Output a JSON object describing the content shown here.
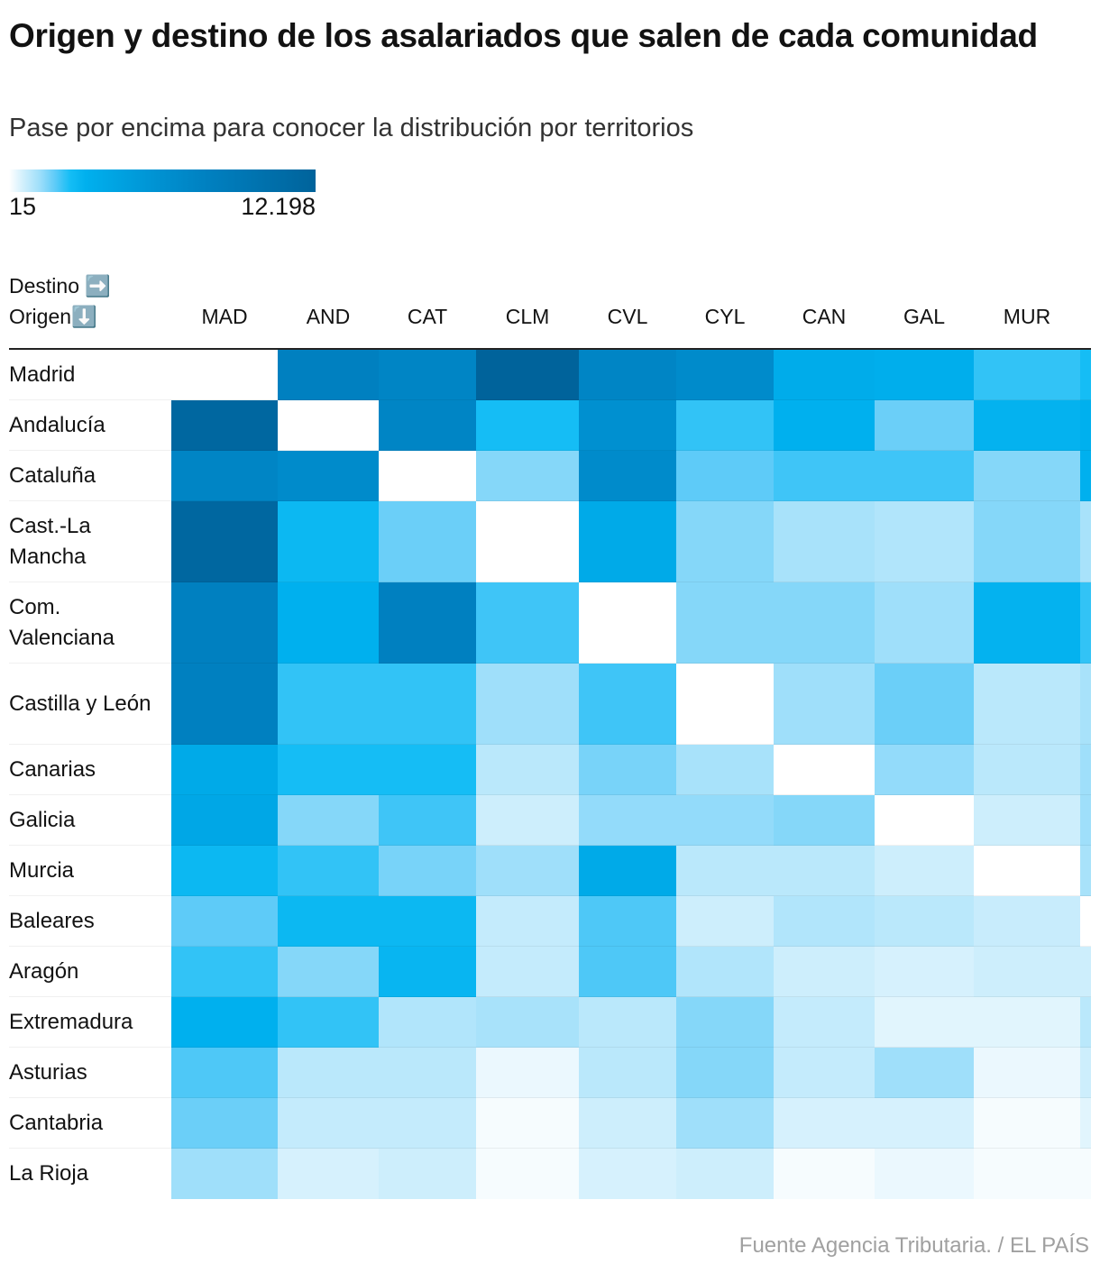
{
  "title": "Origen y destino de los asalariados que salen de cada comunidad",
  "subtitle": "Pase por encima para conocer la distribución por territorios",
  "legend": {
    "min_label": "15",
    "max_label": "12.198"
  },
  "axis_headers": {
    "destino": "Destino ➡️",
    "origen": "Origen⬇️"
  },
  "source": "Fuente Agencia Tributaria. / EL PAÍS",
  "chart_data": {
    "type": "heatmap",
    "title": "Origen y destino de los asalariados que salen de cada comunidad",
    "subtitle": "Pase por encima para conocer la distribución por territorios",
    "xlabel": "Destino",
    "ylabel": "Origen",
    "color_range": [
      15,
      12198
    ],
    "colors": {
      "low": "#ffffff",
      "mid": "#00b8f0",
      "high": "#00639b",
      "diagonal": "#ffffff"
    },
    "columns": [
      "MAD",
      "AND",
      "CAT",
      "CLM",
      "CVL",
      "CYL",
      "CAN",
      "GAL",
      "MUR",
      ""
    ],
    "rows": [
      "Madrid",
      "Andalucía",
      "Cataluña",
      "Cast.-La Mancha",
      "Com. Valenciana",
      "Castilla y León",
      "Canarias",
      "Galicia",
      "Murcia",
      "Baleares",
      "Aragón",
      "Extremadura",
      "Asturias",
      "Cantabria",
      "La Rioja"
    ],
    "values": [
      [
        null,
        5160,
        4400,
        12198,
        4400,
        3700,
        970,
        900,
        410,
        500
      ],
      [
        11010,
        null,
        4400,
        500,
        3060,
        410,
        780,
        255,
        720,
        780
      ],
      [
        4400,
        3700,
        null,
        190,
        3700,
        290,
        370,
        370,
        190,
        780
      ],
      [
        11010,
        605,
        255,
        null,
        1110,
        190,
        115,
        93,
        190,
        115
      ],
      [
        5160,
        780,
        5160,
        370,
        null,
        190,
        190,
        137,
        720,
        410
      ],
      [
        5160,
        410,
        410,
        137,
        370,
        null,
        137,
        255,
        75,
        115
      ],
      [
        1110,
        500,
        500,
        75,
        220,
        115,
        null,
        160,
        75,
        137
      ],
      [
        1260,
        190,
        370,
        45,
        160,
        160,
        190,
        null,
        45,
        137
      ],
      [
        605,
        410,
        220,
        137,
        1110,
        75,
        75,
        45,
        null,
        115
      ],
      [
        290,
        605,
        605,
        59,
        330,
        45,
        93,
        75,
        52,
        null
      ],
      [
        410,
        190,
        660,
        59,
        330,
        93,
        45,
        35,
        45,
        45
      ],
      [
        780,
        410,
        93,
        115,
        75,
        190,
        59,
        26,
        26,
        75
      ],
      [
        330,
        75,
        75,
        20,
        75,
        190,
        59,
        137,
        20,
        45
      ],
      [
        255,
        59,
        59,
        16,
        45,
        137,
        35,
        35,
        16,
        26
      ],
      [
        137,
        35,
        45,
        16,
        35,
        45,
        16,
        20,
        16,
        16
      ]
    ]
  }
}
